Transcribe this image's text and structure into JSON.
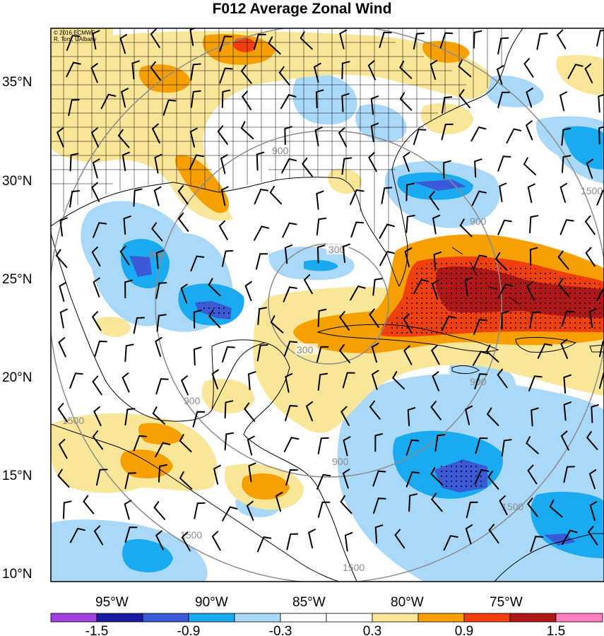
{
  "title": "F012 Average Zonal Wind",
  "credit": {
    "line1": "© 2016 ECMWF",
    "line2": "R. Torn, UAlbany"
  },
  "lat_labels": [
    "35°N",
    "30°N",
    "25°N",
    "20°N",
    "15°N",
    "10°N"
  ],
  "lon_labels": [
    "95°W",
    "90°W",
    "85°W",
    "80°W",
    "75°W"
  ],
  "range_ring_labels": [
    "300",
    "900",
    "1500"
  ],
  "colorbar": {
    "colors": [
      "#a040e0",
      "#1a1aa0",
      "#3a5ad8",
      "#1aaaf0",
      "#aad8f8",
      "#ffffff",
      "#ffffff",
      "#fae699",
      "#f5a000",
      "#f04010",
      "#b01818",
      "#ff80c0"
    ],
    "labels": [
      "-1.5",
      "-0.9",
      "-0.3",
      "0.3",
      "0.9",
      "1.5"
    ]
  },
  "colors": {
    "land_line": "#000000",
    "ring": "#8c8c8c",
    "strong_neg": "#3a5ad8",
    "mid_neg": "#1aaaf0",
    "weak_neg": "#aad8f8",
    "weak_pos": "#fae699",
    "mid_pos": "#f5a000",
    "strong_pos": "#f04010",
    "max_pos": "#b01818"
  }
}
